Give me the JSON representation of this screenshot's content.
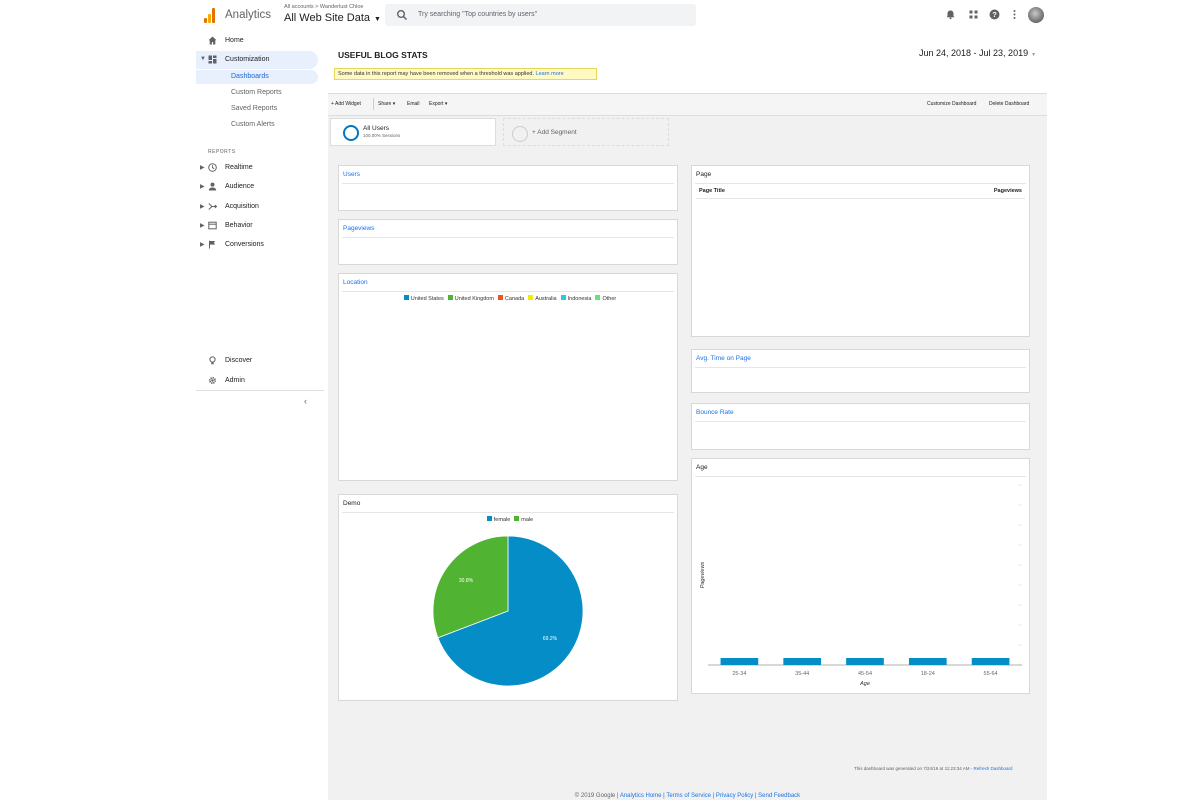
{
  "header": {
    "app_name": "Analytics",
    "breadcrumb": "All accounts > Wanderlust Chloe",
    "view": "All Web Site Data",
    "search_placeholder": "Try searching \"Top countries by users\""
  },
  "sidebar": {
    "home": "Home",
    "customization": "Customization",
    "sub_items": [
      "Dashboards",
      "Custom Reports",
      "Saved Reports",
      "Custom Alerts"
    ],
    "reports_label": "REPORTS",
    "report_items": [
      "Realtime",
      "Audience",
      "Acquisition",
      "Behavior",
      "Conversions"
    ],
    "discover": "Discover",
    "admin": "Admin"
  },
  "dashboard": {
    "title": "USEFUL BLOG STATS",
    "date_range": "Jun 24, 2018 - Jul 23, 2019",
    "notice_text": "Some data in this report may have been removed when a threshold was applied.",
    "notice_link": "Learn more",
    "toolbar": {
      "add_widget": "+ Add Widget",
      "share": "Share",
      "email": "Email",
      "export": "Export",
      "customize": "Customize Dashboard",
      "delete": "Delete Dashboard"
    },
    "segment": {
      "name": "All Users",
      "sub": "100.00% Sessions",
      "add": "+ Add Segment"
    },
    "widgets": {
      "users": "Users",
      "pageviews": "Pageviews",
      "location": "Location",
      "demo": "Demo",
      "page": "Page",
      "page_col_title": "Page Title",
      "page_col_views": "Pageviews",
      "avg_time": "Avg. Time on Page",
      "bounce_rate": "Bounce Rate",
      "age": "Age"
    },
    "location_legend": [
      {
        "label": "United States",
        "color": "#058dc7"
      },
      {
        "label": "United Kingdom",
        "color": "#50b432"
      },
      {
        "label": "Canada",
        "color": "#ed561b"
      },
      {
        "label": "Australia",
        "color": "#edef00"
      },
      {
        "label": "Indonesia",
        "color": "#24cbe5"
      },
      {
        "label": "Other",
        "color": "#64e572"
      }
    ],
    "generated_text": "This dashboard was generated on 7/24/19 at 11:23:34 AM -",
    "refresh_link": "Refresh Dashboard"
  },
  "footer": {
    "copyright": "© 2019 Google |",
    "links": [
      "Analytics Home",
      "Terms of Service",
      "Privacy Policy",
      "Send Feedback"
    ]
  },
  "chart_data": [
    {
      "type": "pie",
      "title": "Demo",
      "categories": [
        "female",
        "male"
      ],
      "values": [
        69.2,
        30.8
      ],
      "labels": [
        "69.2%",
        "30.8%"
      ],
      "colors": [
        "#058dc7",
        "#50b432"
      ],
      "legend": "top"
    },
    {
      "type": "bar",
      "title": "Age",
      "categories": [
        "25-34",
        "35-44",
        "45-54",
        "18-24",
        "55-64"
      ],
      "values": [
        1,
        1,
        1,
        1,
        1
      ],
      "xlabel": "Age",
      "ylabel": "Pageviews",
      "color": "#058dc7",
      "grid": true
    }
  ]
}
